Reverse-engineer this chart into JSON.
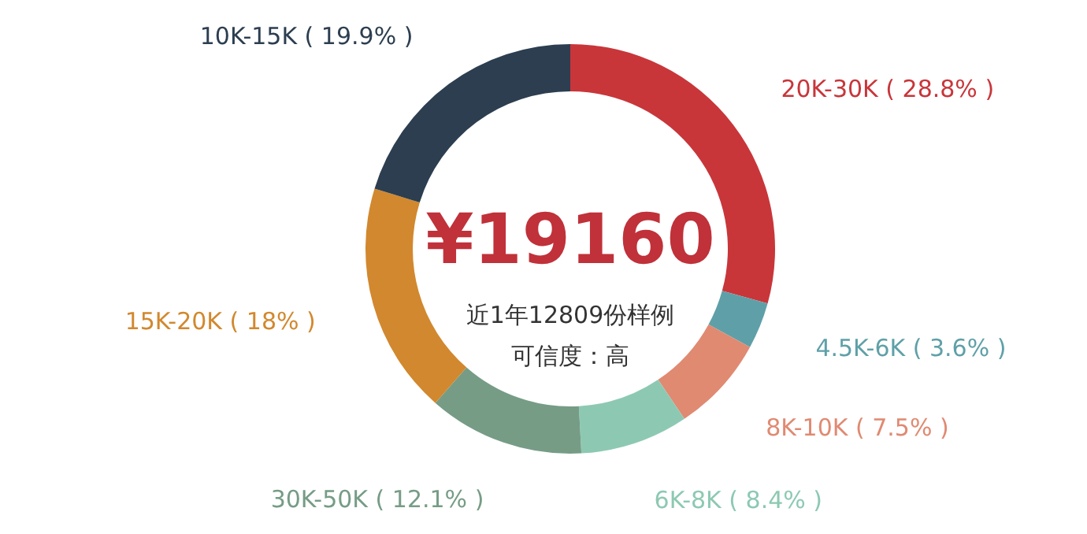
{
  "chart_data": {
    "type": "donut",
    "categories": [
      "20K-30K",
      "4.5K-6K",
      "8K-10K",
      "6K-8K",
      "30K-50K",
      "15K-20K",
      "10K-15K"
    ],
    "values": [
      28.8,
      3.6,
      7.5,
      8.4,
      12.1,
      18,
      19.9
    ],
    "value_labels": [
      "( 28.8% )",
      "( 3.6% )",
      "( 7.5% )",
      "( 8.4% )",
      "( 12.1% )",
      "( 18% )",
      "( 19.9% )"
    ],
    "colors": [
      "#c8363a",
      "#5fa0a8",
      "#e08a72",
      "#8dc9b2",
      "#769c86",
      "#d2882e",
      "#2c3e50"
    ],
    "annotations": [
      "¥19160",
      "近1年12809份样例",
      "可信度：高"
    ]
  }
}
